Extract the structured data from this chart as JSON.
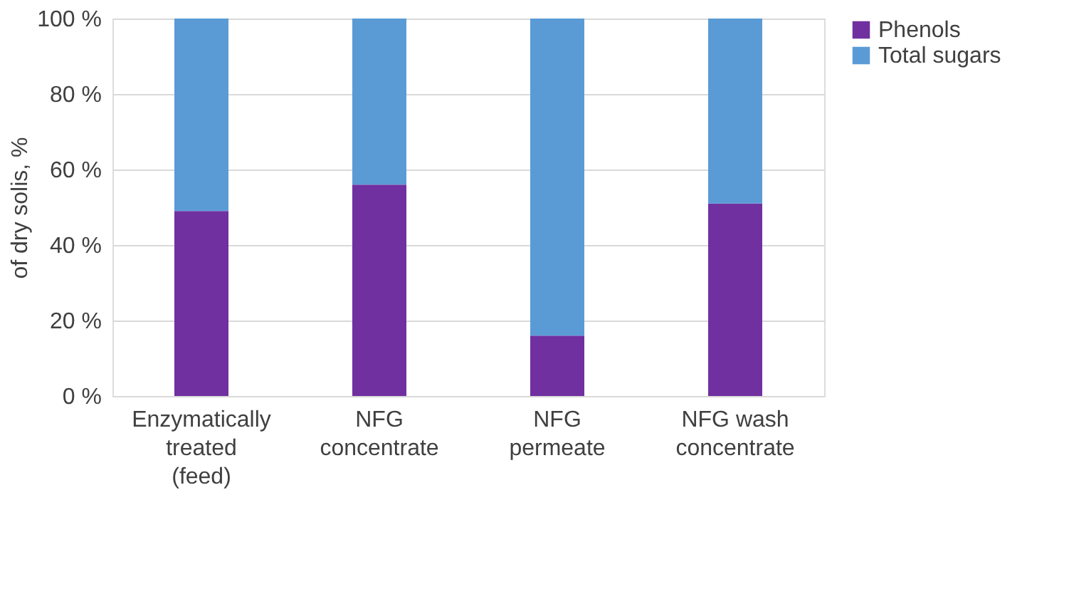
{
  "chart_data": {
    "type": "bar",
    "stacked": true,
    "ylabel": "of dry solis, %",
    "categories": [
      "Enzymatically treated (feed)",
      "NFG concentrate",
      "NFG permeate",
      "NFG wash concentrate"
    ],
    "series": [
      {
        "name": "Phenols",
        "color": "#7030a0",
        "values": [
          49,
          56,
          16,
          51
        ]
      },
      {
        "name": "Total sugars",
        "color": "#5b9bd5",
        "values": [
          51,
          44,
          84,
          49
        ]
      }
    ],
    "ylim": [
      0,
      100
    ],
    "yticks": [
      {
        "value": 0,
        "label": "0 %"
      },
      {
        "value": 20,
        "label": "20 %"
      },
      {
        "value": 40,
        "label": "40 %"
      },
      {
        "value": 60,
        "label": "60 %"
      },
      {
        "value": 80,
        "label": "80 %"
      },
      {
        "value": 100,
        "label": "100 %"
      }
    ],
    "grid": "y",
    "legend": "right"
  }
}
